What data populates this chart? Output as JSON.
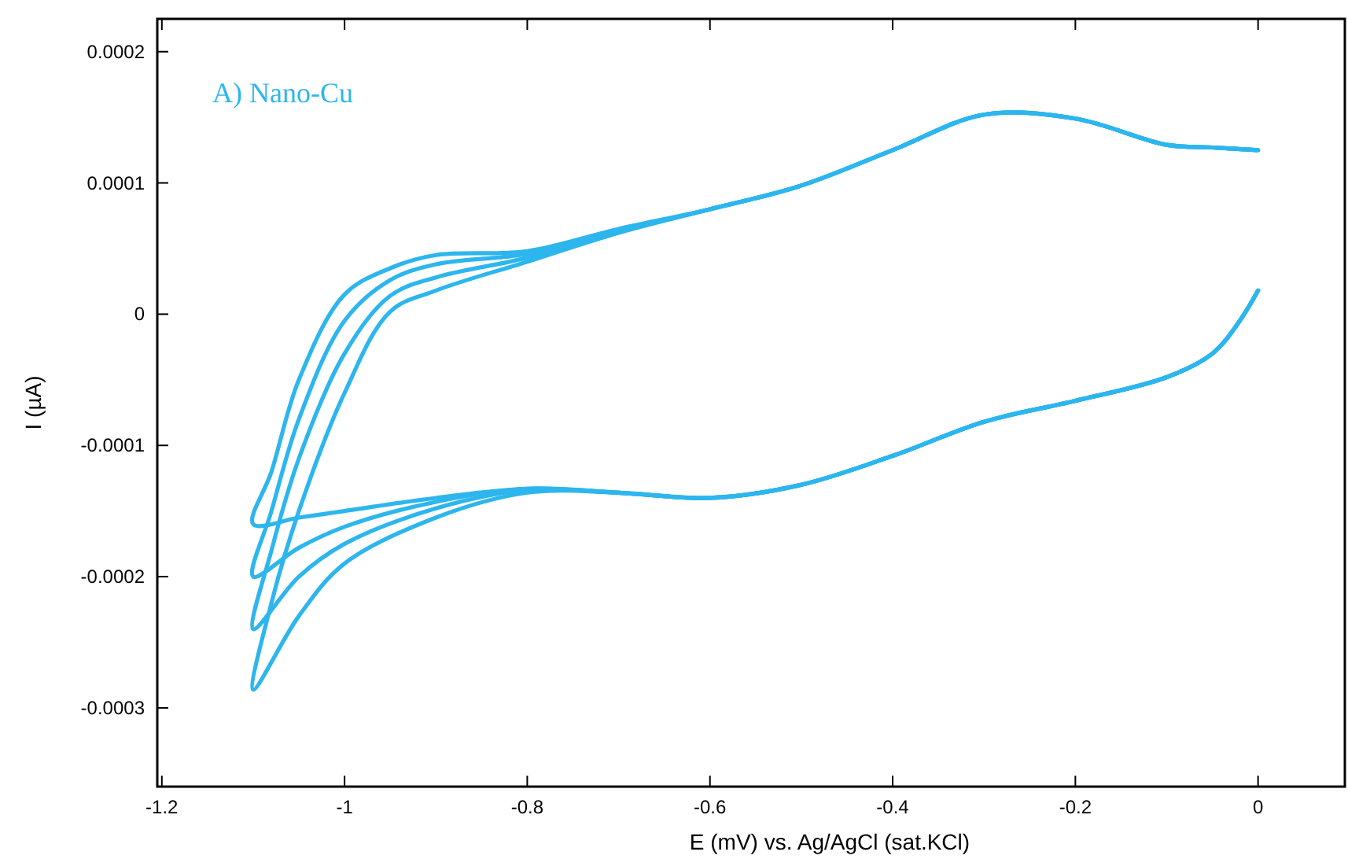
{
  "chart_data": {
    "type": "line",
    "xlabel": "E (mV) vs. Ag/AgCl (sat.KCl)",
    "ylabel": "I (µA)",
    "annotations": [
      "A) Nano-Cu"
    ],
    "xlim": [
      -1.205,
      0.095
    ],
    "xticks": [
      -1.2,
      -1,
      -0.8,
      -0.6,
      -0.4,
      -0.2,
      0
    ],
    "ylim": [
      -0.00036,
      0.000225
    ],
    "yticks": [
      -0.0003,
      -0.0002,
      -0.0001,
      0,
      0.0001,
      0.0002
    ],
    "marker": "none",
    "line_style": "solid",
    "series": [
      {
        "color": "#2db6ee",
        "x": [
          0,
          -0.02,
          -0.05,
          -0.1,
          -0.2,
          -0.3,
          -0.4,
          -0.5,
          -0.6,
          -0.7,
          -0.8,
          -0.9,
          -1,
          -1.05,
          -1.1,
          -1.08,
          -1.05,
          -1,
          -0.95,
          -0.9,
          -0.8,
          -0.7,
          -0.6,
          -0.5,
          -0.4,
          -0.3,
          -0.2,
          -0.1,
          -0.05,
          0
        ],
        "values": [
          1.8e-05,
          -5e-06,
          -3e-05,
          -4.8e-05,
          -6.6e-05,
          -8.2e-05,
          -0.000108,
          -0.00013,
          -0.00014,
          -0.000136,
          -0.000136,
          -0.000155,
          -0.00019,
          -0.00023,
          -0.000286,
          -0.00022,
          -0.00015,
          -6e-05,
          2e-06,
          1.8e-05,
          4e-05,
          6.2e-05,
          8e-05,
          9.8e-05,
          0.000125,
          0.000152,
          0.000149,
          0.000129,
          0.000127,
          0.000125
        ]
      },
      {
        "color": "#2db6ee",
        "x": [
          0,
          -0.02,
          -0.05,
          -0.1,
          -0.2,
          -0.3,
          -0.4,
          -0.5,
          -0.6,
          -0.7,
          -0.8,
          -0.9,
          -1,
          -1.05,
          -1.1,
          -1.08,
          -1.05,
          -1,
          -0.95,
          -0.9,
          -0.8,
          -0.7,
          -0.6,
          -0.5,
          -0.4,
          -0.3,
          -0.2,
          -0.1,
          -0.05,
          0
        ],
        "values": [
          1.8e-05,
          -5e-06,
          -3e-05,
          -4.8e-05,
          -6.6e-05,
          -8.2e-05,
          -0.000108,
          -0.00013,
          -0.00014,
          -0.000136,
          -0.000134,
          -0.000148,
          -0.000175,
          -0.0002,
          -0.00024,
          -0.00018,
          -0.00011,
          -3e-05,
          1.4e-05,
          2.8e-05,
          4.3e-05,
          6.3e-05,
          8e-05,
          9.8e-05,
          0.000125,
          0.000152,
          0.000149,
          0.000129,
          0.000127,
          0.000125
        ]
      },
      {
        "color": "#2db6ee",
        "x": [
          0,
          -0.02,
          -0.05,
          -0.1,
          -0.2,
          -0.3,
          -0.4,
          -0.5,
          -0.6,
          -0.7,
          -0.8,
          -0.9,
          -1,
          -1.05,
          -1.1,
          -1.08,
          -1.05,
          -1,
          -0.95,
          -0.9,
          -0.8,
          -0.7,
          -0.6,
          -0.5,
          -0.4,
          -0.3,
          -0.2,
          -0.1,
          -0.05,
          0
        ],
        "values": [
          1.8e-05,
          -5e-06,
          -3e-05,
          -4.8e-05,
          -6.6e-05,
          -8.2e-05,
          -0.000108,
          -0.00013,
          -0.00014,
          -0.000136,
          -0.000133,
          -0.000143,
          -0.000162,
          -0.000178,
          -0.0002,
          -0.00015,
          -8e-05,
          -5e-06,
          2.6e-05,
          3.8e-05,
          4.6e-05,
          6.4e-05,
          8e-05,
          9.8e-05,
          0.000125,
          0.000152,
          0.000149,
          0.000129,
          0.000127,
          0.000125
        ]
      },
      {
        "color": "#2db6ee",
        "x": [
          0,
          -0.02,
          -0.05,
          -0.1,
          -0.2,
          -0.3,
          -0.4,
          -0.5,
          -0.6,
          -0.7,
          -0.8,
          -0.9,
          -1,
          -1.05,
          -1.1,
          -1.08,
          -1.05,
          -1,
          -0.95,
          -0.9,
          -0.8,
          -0.7,
          -0.6,
          -0.5,
          -0.4,
          -0.3,
          -0.2,
          -0.1,
          -0.05,
          0
        ],
        "values": [
          1.8e-05,
          -5e-06,
          -3e-05,
          -4.8e-05,
          -6.6e-05,
          -8.2e-05,
          -0.000108,
          -0.00013,
          -0.00014,
          -0.000136,
          -0.000133,
          -0.00014,
          -0.00015,
          -0.000155,
          -0.00016,
          -0.00012,
          -5e-05,
          1.5e-05,
          3.5e-05,
          4.5e-05,
          4.8e-05,
          6.5e-05,
          8e-05,
          9.8e-05,
          0.000125,
          0.000152,
          0.000149,
          0.000129,
          0.000127,
          0.000125
        ]
      }
    ]
  }
}
